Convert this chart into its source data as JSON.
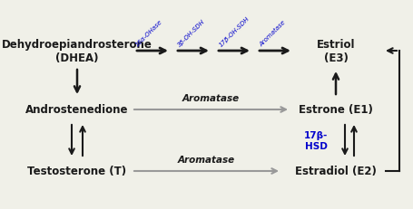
{
  "bg_color": "#f0f0e8",
  "text_color_black": "#1a1a1a",
  "text_color_blue": "#0000cc",
  "arrow_color_black": "#1a1a1a",
  "arrow_color_gray": "#999999",
  "labels": {
    "DHEA": "Dehydroepiandrosterone\n(DHEA)",
    "E3": "Estriol\n(E3)",
    "Andro": "Androstenedione",
    "E1": "Estrone (E1)",
    "Testo": "Testosterone (T)",
    "E2": "Estradiol (E2)"
  },
  "enzyme_labels_top": [
    "16α-OHase",
    "3β-OH-SDH",
    "17β-OH-SDH",
    "Aromatase"
  ],
  "aromatase_label": "Aromatase",
  "hsd_label": "17β-\nHSD"
}
